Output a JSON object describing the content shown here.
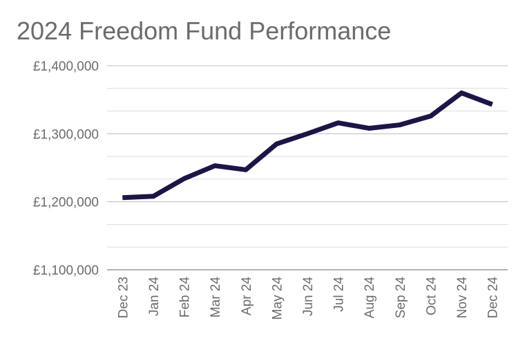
{
  "chart_data": {
    "type": "line",
    "title": "2024 Freedom Fund Performance",
    "xlabel": "",
    "ylabel": "",
    "categories": [
      "Dec 23",
      "Jan 24",
      "Feb 24",
      "Mar 24",
      "Apr 24",
      "May 24",
      "Jun 24",
      "Jul 24",
      "Aug 24",
      "Sep 24",
      "Oct 24",
      "Nov 24",
      "Dec 24"
    ],
    "series": [
      {
        "name": "Freedom Fund",
        "color": "#1f1446",
        "values": [
          1206000,
          1208000,
          1234000,
          1253000,
          1247000,
          1285000,
          1300000,
          1316000,
          1308000,
          1313000,
          1326000,
          1360000,
          1343000
        ]
      }
    ],
    "ylim": [
      1100000,
      1400000
    ],
    "yticks": [
      1100000,
      1200000,
      1300000,
      1400000
    ],
    "ytick_labels": [
      "£1,100,000",
      "£1,200,000",
      "£1,300,000",
      "£1,400,000"
    ],
    "minor_gridlines_per_major": 3,
    "grid": true,
    "legend": "none"
  }
}
